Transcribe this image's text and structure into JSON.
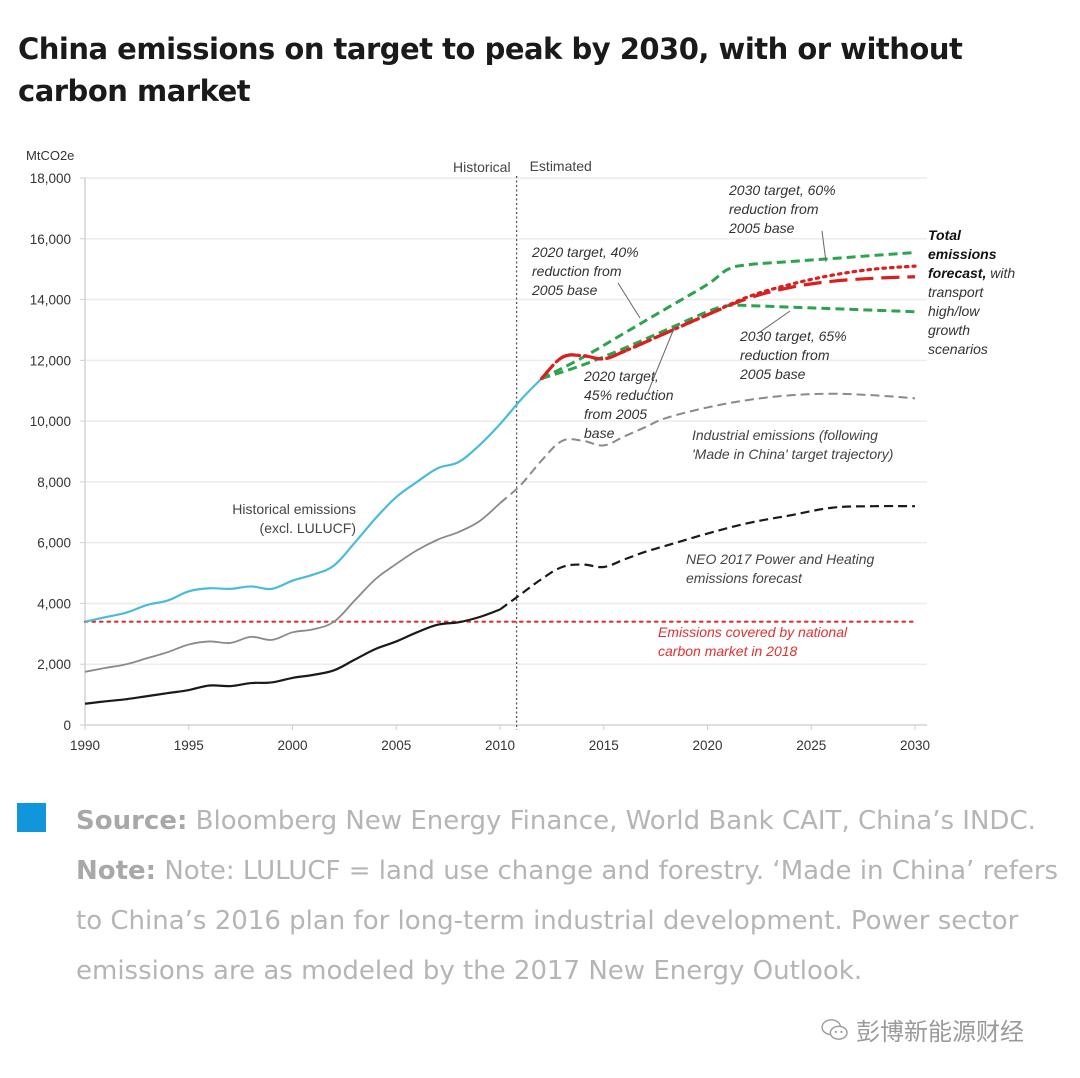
{
  "header": {
    "title": "China emissions on target to peak by 2030, with or without carbon market"
  },
  "chart_data": {
    "type": "line",
    "title": "China emissions on target to peak by 2030, with or without carbon market",
    "ylabel": "MtCO2e",
    "xlabel": "",
    "xlim": [
      1990,
      2030
    ],
    "ylim": [
      0,
      18000
    ],
    "x_ticks": [
      1990,
      1995,
      2000,
      2005,
      2010,
      2015,
      2020,
      2025,
      2030
    ],
    "x_tick_labels": [
      "1990",
      "1995",
      "2000",
      "2005",
      "2010",
      "2015",
      "2020",
      "2025",
      "2030"
    ],
    "y_ticks": [
      0,
      2000,
      4000,
      6000,
      8000,
      10000,
      12000,
      14000,
      16000,
      18000
    ],
    "y_tick_labels": [
      "0",
      "2,000",
      "4,000",
      "6,000",
      "8,000",
      "10,000",
      "12,000",
      "14,000",
      "16,000",
      "18,000"
    ],
    "grid": true,
    "divider": {
      "x": 2010.8,
      "left_label": "Historical",
      "right_label": "Estimated"
    },
    "series": [
      {
        "name": "Historical emissions (excl. LULUCF)",
        "style": "solid",
        "color": "#4bbcd8",
        "points": [
          [
            1990,
            3400
          ],
          [
            1991,
            3550
          ],
          [
            1992,
            3700
          ],
          [
            1993,
            3950
          ],
          [
            1994,
            4100
          ],
          [
            1995,
            4400
          ],
          [
            1996,
            4500
          ],
          [
            1997,
            4480
          ],
          [
            1998,
            4560
          ],
          [
            1999,
            4480
          ],
          [
            2000,
            4750
          ],
          [
            2001,
            4950
          ],
          [
            2002,
            5250
          ],
          [
            2003,
            6000
          ],
          [
            2004,
            6800
          ],
          [
            2005,
            7500
          ],
          [
            2006,
            8000
          ],
          [
            2007,
            8450
          ],
          [
            2008,
            8650
          ],
          [
            2009,
            9200
          ],
          [
            2010,
            9900
          ],
          [
            2011,
            10700
          ],
          [
            2012,
            11400
          ]
        ]
      },
      {
        "name": "Industrial emissions (historical)",
        "style": "solid",
        "color": "#8a8a8a",
        "points": [
          [
            1990,
            1750
          ],
          [
            1991,
            1880
          ],
          [
            1992,
            2000
          ],
          [
            1993,
            2200
          ],
          [
            1994,
            2400
          ],
          [
            1995,
            2650
          ],
          [
            1996,
            2750
          ],
          [
            1997,
            2700
          ],
          [
            1998,
            2900
          ],
          [
            1999,
            2800
          ],
          [
            2000,
            3050
          ],
          [
            2001,
            3150
          ],
          [
            2002,
            3400
          ],
          [
            2003,
            4100
          ],
          [
            2004,
            4800
          ],
          [
            2005,
            5300
          ],
          [
            2006,
            5750
          ],
          [
            2007,
            6100
          ],
          [
            2008,
            6350
          ],
          [
            2009,
            6700
          ],
          [
            2010,
            7300
          ]
        ]
      },
      {
        "name": "Industrial emissions (following 'Made in China' target trajectory)",
        "style": "dashed",
        "color": "#8a8a8a",
        "points": [
          [
            2010,
            7300
          ],
          [
            2011,
            7900
          ],
          [
            2012,
            8700
          ],
          [
            2013,
            9350
          ],
          [
            2014,
            9350
          ],
          [
            2015,
            9200
          ],
          [
            2016,
            9500
          ],
          [
            2017,
            9800
          ],
          [
            2018,
            10100
          ],
          [
            2020,
            10450
          ],
          [
            2022,
            10700
          ],
          [
            2024,
            10850
          ],
          [
            2026,
            10900
          ],
          [
            2028,
            10850
          ],
          [
            2030,
            10750
          ]
        ]
      },
      {
        "name": "Power and heating emissions (historical)",
        "style": "solid",
        "color": "#1a1a1a",
        "points": [
          [
            1990,
            700
          ],
          [
            1991,
            780
          ],
          [
            1992,
            850
          ],
          [
            1993,
            950
          ],
          [
            1994,
            1050
          ],
          [
            1995,
            1150
          ],
          [
            1996,
            1300
          ],
          [
            1997,
            1280
          ],
          [
            1998,
            1380
          ],
          [
            1999,
            1400
          ],
          [
            2000,
            1550
          ],
          [
            2001,
            1650
          ],
          [
            2002,
            1800
          ],
          [
            2003,
            2150
          ],
          [
            2004,
            2500
          ],
          [
            2005,
            2750
          ],
          [
            2006,
            3050
          ],
          [
            2007,
            3300
          ],
          [
            2008,
            3380
          ],
          [
            2009,
            3550
          ],
          [
            2010,
            3800
          ]
        ]
      },
      {
        "name": "NEO 2017 Power and Heating emissions forecast",
        "style": "dashed",
        "color": "#1a1a1a",
        "points": [
          [
            2010,
            3800
          ],
          [
            2011,
            4300
          ],
          [
            2012,
            4800
          ],
          [
            2013,
            5200
          ],
          [
            2014,
            5280
          ],
          [
            2015,
            5200
          ],
          [
            2016,
            5450
          ],
          [
            2017,
            5700
          ],
          [
            2018,
            5900
          ],
          [
            2020,
            6300
          ],
          [
            2022,
            6650
          ],
          [
            2024,
            6900
          ],
          [
            2026,
            7150
          ],
          [
            2028,
            7200
          ],
          [
            2030,
            7200
          ]
        ]
      },
      {
        "name": "2020 target, 40% reduction from 2005 base / 2030 target, 60% reduction from 2005 base",
        "style": "dashed",
        "color": "#2ca34f",
        "points": [
          [
            2012,
            11400
          ],
          [
            2014,
            12100
          ],
          [
            2016,
            12900
          ],
          [
            2018,
            13700
          ],
          [
            2020,
            14500
          ],
          [
            2021,
            15000
          ],
          [
            2022,
            15150
          ],
          [
            2024,
            15250
          ],
          [
            2026,
            15350
          ],
          [
            2028,
            15450
          ],
          [
            2030,
            15550
          ]
        ]
      },
      {
        "name": "2020 target, 45% reduction from 2005 base / 2030 target, 65% reduction from 2005 base",
        "style": "dashed",
        "color": "#2ca34f",
        "points": [
          [
            2012,
            11400
          ],
          [
            2014,
            11850
          ],
          [
            2016,
            12400
          ],
          [
            2018,
            13000
          ],
          [
            2020,
            13600
          ],
          [
            2021,
            13800
          ],
          [
            2022,
            13800
          ],
          [
            2024,
            13750
          ],
          [
            2026,
            13700
          ],
          [
            2028,
            13650
          ],
          [
            2030,
            13600
          ]
        ]
      },
      {
        "name": "Total emissions forecast, transport high growth",
        "style": "dotted",
        "color": "#d92020",
        "points": [
          [
            2012,
            11400
          ],
          [
            2013,
            12100
          ],
          [
            2014,
            12150
          ],
          [
            2015,
            12050
          ],
          [
            2016,
            12300
          ],
          [
            2018,
            12900
          ],
          [
            2020,
            13500
          ],
          [
            2022,
            14100
          ],
          [
            2024,
            14500
          ],
          [
            2026,
            14800
          ],
          [
            2028,
            15000
          ],
          [
            2030,
            15100
          ]
        ]
      },
      {
        "name": "Total emissions forecast, transport low growth",
        "style": "longdash",
        "color": "#d92020",
        "points": [
          [
            2012,
            11400
          ],
          [
            2013,
            12100
          ],
          [
            2014,
            12150
          ],
          [
            2015,
            12050
          ],
          [
            2016,
            12300
          ],
          [
            2018,
            12900
          ],
          [
            2020,
            13500
          ],
          [
            2022,
            14050
          ],
          [
            2024,
            14400
          ],
          [
            2026,
            14600
          ],
          [
            2028,
            14700
          ],
          [
            2030,
            14750
          ]
        ]
      },
      {
        "name": "Emissions covered by national carbon market in 2018",
        "style": "dotted",
        "color": "#e03030",
        "points": [
          [
            1990,
            3400
          ],
          [
            2030,
            3400
          ]
        ]
      }
    ],
    "annotations": [
      {
        "id": "hist",
        "lines": [
          "Historical emissions",
          "(excl. LULUCF)"
        ],
        "style": "normal",
        "color": "#444444"
      },
      {
        "id": "t2020_40",
        "lines": [
          "2020 target, 40%",
          "reduction from",
          "2005 base"
        ],
        "style": "italic",
        "color": "#333333"
      },
      {
        "id": "t2030_60",
        "lines": [
          "2030 target, 60%",
          "reduction from",
          "2005 base"
        ],
        "style": "italic",
        "color": "#333333"
      },
      {
        "id": "t2020_45",
        "lines": [
          "2020 target,",
          "45% reduction",
          "from 2005",
          "base"
        ],
        "style": "italic",
        "color": "#333333"
      },
      {
        "id": "t2030_65",
        "lines": [
          "2030 target, 65%",
          "reduction from",
          "2005 base"
        ],
        "style": "italic",
        "color": "#333333"
      },
      {
        "id": "total",
        "lines_bold": [
          "Total",
          "emissions",
          "forecast,"
        ],
        "lines": [
          " with",
          "transport",
          "high/low",
          "growth",
          "scenarios"
        ],
        "style": "italic",
        "color": "#333333"
      },
      {
        "id": "industrial",
        "lines": [
          "Industrial emissions (following",
          "'Made in China' target trajectory)"
        ],
        "style": "italic",
        "color": "#444444"
      },
      {
        "id": "neo",
        "lines": [
          "NEO 2017 Power and Heating",
          "emissions forecast"
        ],
        "style": "italic",
        "color": "#444444"
      },
      {
        "id": "market",
        "lines": [
          "Emissions covered by  national",
          "carbon market  in 2018"
        ],
        "style": "italic",
        "color": "#e03030"
      }
    ]
  },
  "footer": {
    "source_label": "Source:",
    "source_text": " Bloomberg New Energy Finance, World Bank CAIT, China’s INDC.",
    "note_label": "Note:",
    "note_text": " Note: LULUCF = land use change and forestry. ‘Made in China’ refers to China’s 2016 plan for long-term industrial development. Power sector emissions are as modeled by the 2017 New Energy Outlook.",
    "bullet_color": "#1296db"
  },
  "watermark": {
    "text": "彭博新能源财经"
  }
}
